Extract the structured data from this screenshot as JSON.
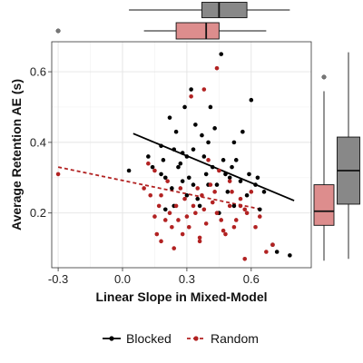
{
  "chart_data": {
    "type": "scatter",
    "xlabel": "Linear Slope in Mixed-Model",
    "ylabel": "Average Retention AE (s)",
    "xlim": [
      -0.33,
      0.88
    ],
    "ylim": [
      0.045,
      0.685
    ],
    "x_ticks": [
      -0.3,
      0.0,
      0.3,
      0.6
    ],
    "x_tick_labels": [
      "-0.3",
      "0.0",
      "0.3",
      "0.6"
    ],
    "y_ticks": [
      0.2,
      0.4,
      0.6
    ],
    "y_tick_labels": [
      "0.2",
      "0.4",
      "0.6"
    ],
    "grid": true,
    "legend_position": "bottom",
    "series": [
      {
        "name": "Blocked",
        "color": "#000000",
        "line_style": "solid",
        "trend": [
          [
            0.05,
            0.425
          ],
          [
            0.8,
            0.235
          ]
        ],
        "points": [
          [
            0.03,
            0.32
          ],
          [
            0.12,
            0.36
          ],
          [
            0.14,
            0.33
          ],
          [
            0.18,
            0.39
          ],
          [
            0.18,
            0.31
          ],
          [
            0.19,
            0.35
          ],
          [
            0.2,
            0.3
          ],
          [
            0.2,
            0.21
          ],
          [
            0.22,
            0.47
          ],
          [
            0.23,
            0.27
          ],
          [
            0.24,
            0.22
          ],
          [
            0.24,
            0.38
          ],
          [
            0.25,
            0.43
          ],
          [
            0.26,
            0.33
          ],
          [
            0.27,
            0.34
          ],
          [
            0.28,
            0.29
          ],
          [
            0.29,
            0.5
          ],
          [
            0.3,
            0.25
          ],
          [
            0.3,
            0.36
          ],
          [
            0.31,
            0.3
          ],
          [
            0.32,
            0.55
          ],
          [
            0.33,
            0.38
          ],
          [
            0.33,
            0.28
          ],
          [
            0.34,
            0.45
          ],
          [
            0.35,
            0.24
          ],
          [
            0.36,
            0.22
          ],
          [
            0.37,
            0.42
          ],
          [
            0.38,
            0.36
          ],
          [
            0.39,
            0.31
          ],
          [
            0.4,
            0.28
          ],
          [
            0.41,
            0.5
          ],
          [
            0.42,
            0.33
          ],
          [
            0.43,
            0.44
          ],
          [
            0.44,
            0.28
          ],
          [
            0.45,
            0.2
          ],
          [
            0.46,
            0.65
          ],
          [
            0.47,
            0.35
          ],
          [
            0.48,
            0.31
          ],
          [
            0.49,
            0.26
          ],
          [
            0.5,
            0.3
          ],
          [
            0.51,
            0.33
          ],
          [
            0.52,
            0.22
          ],
          [
            0.53,
            0.35
          ],
          [
            0.55,
            0.29
          ],
          [
            0.56,
            0.43
          ],
          [
            0.58,
            0.25
          ],
          [
            0.59,
            0.31
          ],
          [
            0.6,
            0.52
          ],
          [
            0.62,
            0.28
          ],
          [
            0.63,
            0.3
          ],
          [
            0.64,
            0.21
          ],
          [
            0.66,
            0.26
          ],
          [
            0.7,
            0.11
          ],
          [
            0.72,
            0.09
          ],
          [
            0.78,
            0.08
          ],
          [
            0.4,
            0.4
          ],
          [
            0.28,
            0.37
          ],
          [
            0.52,
            0.4
          ]
        ]
      },
      {
        "name": "Random",
        "color": "#b22222",
        "line_style": "dashed",
        "trend": [
          [
            -0.3,
            0.33
          ],
          [
            0.65,
            0.21
          ]
        ],
        "points": [
          [
            -0.3,
            0.31
          ],
          [
            0.1,
            0.27
          ],
          [
            0.12,
            0.34
          ],
          [
            0.13,
            0.25
          ],
          [
            0.15,
            0.32
          ],
          [
            0.15,
            0.19
          ],
          [
            0.16,
            0.14
          ],
          [
            0.17,
            0.22
          ],
          [
            0.18,
            0.25
          ],
          [
            0.18,
            0.12
          ],
          [
            0.2,
            0.18
          ],
          [
            0.21,
            0.29
          ],
          [
            0.22,
            0.2
          ],
          [
            0.23,
            0.16
          ],
          [
            0.24,
            0.1
          ],
          [
            0.25,
            0.22
          ],
          [
            0.26,
            0.18
          ],
          [
            0.27,
            0.27
          ],
          [
            0.28,
            0.14
          ],
          [
            0.29,
            0.24
          ],
          [
            0.3,
            0.19
          ],
          [
            0.31,
            0.16
          ],
          [
            0.32,
            0.53
          ],
          [
            0.33,
            0.22
          ],
          [
            0.34,
            0.2
          ],
          [
            0.35,
            0.27
          ],
          [
            0.36,
            0.12
          ],
          [
            0.37,
            0.25
          ],
          [
            0.38,
            0.21
          ],
          [
            0.39,
            0.17
          ],
          [
            0.4,
            0.35
          ],
          [
            0.41,
            0.28
          ],
          [
            0.42,
            0.23
          ],
          [
            0.43,
            0.26
          ],
          [
            0.44,
            0.2
          ],
          [
            0.44,
            0.61
          ],
          [
            0.45,
            0.32
          ],
          [
            0.46,
            0.18
          ],
          [
            0.47,
            0.15
          ],
          [
            0.48,
            0.14
          ],
          [
            0.5,
            0.22
          ],
          [
            0.5,
            0.29
          ],
          [
            0.51,
            0.26
          ],
          [
            0.52,
            0.16
          ],
          [
            0.53,
            0.18
          ],
          [
            0.55,
            0.24
          ],
          [
            0.55,
            0.22
          ],
          [
            0.57,
            0.21
          ],
          [
            0.58,
            0.2
          ],
          [
            0.6,
            0.26
          ],
          [
            0.62,
            0.16
          ],
          [
            0.64,
            0.19
          ],
          [
            0.67,
            0.09
          ],
          [
            0.7,
            0.11
          ],
          [
            0.57,
            0.07
          ],
          [
            0.38,
            0.55
          ],
          [
            0.36,
            0.13
          ]
        ]
      }
    ],
    "marginal_x": {
      "Blocked": {
        "q1": 0.37,
        "median": 0.45,
        "q3": 0.58,
        "whisker_low": 0.03,
        "whisker_high": 0.78,
        "outliers": []
      },
      "Random": {
        "q1": 0.25,
        "median": 0.39,
        "q3": 0.45,
        "whisker_low": 0.1,
        "whisker_high": 0.67,
        "outliers": [
          -0.3
        ]
      }
    },
    "marginal_y": {
      "Blocked": {
        "q1": 0.225,
        "median": 0.32,
        "q3": 0.415,
        "whisker_low": 0.07,
        "whisker_high": 0.655,
        "outliers": []
      },
      "Random": {
        "q1": 0.165,
        "median": 0.205,
        "q3": 0.28,
        "whisker_low": 0.065,
        "whisker_high": 0.545,
        "outliers": [
          0.585
        ]
      }
    }
  }
}
